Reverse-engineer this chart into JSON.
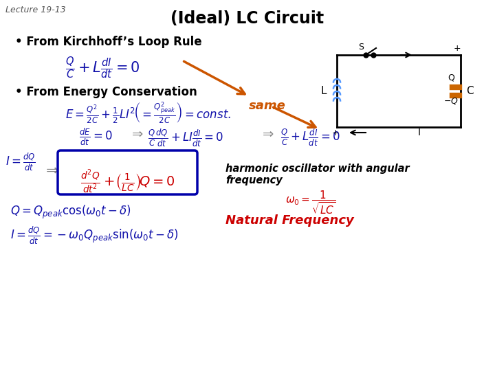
{
  "title": "(Ideal) LC Circuit",
  "lecture_label": "Lecture 19-13",
  "bg_color": "#ffffff",
  "bullet1": "• From Kirchhoff’s Loop Rule",
  "bullet2": "• From Energy Conservation",
  "same_text": "same",
  "harmonic_text": "harmonic oscillator with angular\nfrequency",
  "natural_freq_text": "Natural Frequency",
  "blue_color": "#1111aa",
  "red_color": "#cc0000",
  "orange_color": "#cc5500",
  "dark_blue": "#0000aa",
  "gray_color": "#888888"
}
